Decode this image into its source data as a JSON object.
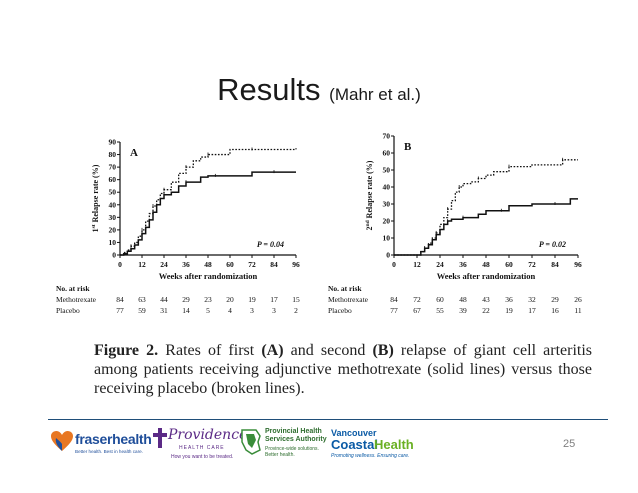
{
  "slide": {
    "title": "Results",
    "title_sub": "(Mahr et al.)",
    "page_number": "25"
  },
  "caption": {
    "figure_label": "Figure 2.",
    "text_1": " Rates of first ",
    "label_a": "(A)",
    "text_2": " and second ",
    "label_b": "(B)",
    "text_3": " relapse of giant cell arteritis among patients receiving adjunctive methotrexate (solid lines) versus those receiving placebo (broken lines)."
  },
  "chart_data": [
    {
      "type": "line",
      "panel": "A",
      "ylabel_prefix": "1",
      "ylabel_sup": "st",
      "ylabel_rest": " Relapse rate (%)",
      "xlabel": "Weeks after randomization",
      "p_value": "P = 0.04",
      "ylim": [
        0,
        90
      ],
      "yticks": [
        0,
        10,
        20,
        30,
        40,
        50,
        60,
        70,
        80,
        90
      ],
      "xlim": [
        0,
        96
      ],
      "xticks": [
        0,
        12,
        24,
        36,
        48,
        60,
        72,
        84,
        96
      ],
      "series": [
        {
          "name": "Methotrexate",
          "style": "solid",
          "x": [
            0,
            2,
            4,
            6,
            8,
            10,
            12,
            14,
            16,
            18,
            20,
            22,
            24,
            28,
            32,
            36,
            44,
            48,
            52,
            60,
            72,
            84,
            96
          ],
          "y": [
            0,
            1,
            3,
            5,
            8,
            12,
            17,
            22,
            28,
            34,
            40,
            45,
            48,
            50,
            55,
            58,
            62,
            63,
            63,
            63,
            66,
            66,
            66
          ]
        },
        {
          "name": "Placebo",
          "style": "dashed",
          "x": [
            0,
            2,
            4,
            6,
            8,
            10,
            12,
            14,
            16,
            18,
            20,
            22,
            24,
            28,
            32,
            36,
            40,
            44,
            48,
            52,
            60,
            72,
            84,
            96
          ],
          "y": [
            0,
            2,
            4,
            7,
            10,
            15,
            20,
            27,
            33,
            39,
            44,
            49,
            52,
            58,
            65,
            70,
            75,
            78,
            80,
            80,
            84,
            84,
            84,
            85
          ]
        }
      ],
      "risk_table": {
        "title": "No. at risk",
        "rows": [
          {
            "label": "Methotrexate",
            "values": [
              "84",
              "63",
              "44",
              "29",
              "23",
              "20",
              "19",
              "17",
              "15"
            ]
          },
          {
            "label": "Placebo",
            "values": [
              "77",
              "59",
              "31",
              "14",
              "5",
              "4",
              "3",
              "3",
              "2"
            ]
          }
        ]
      }
    },
    {
      "type": "line",
      "panel": "B",
      "ylabel_prefix": "2",
      "ylabel_sup": "nd",
      "ylabel_rest": " Relapse rate (%)",
      "xlabel": "Weeks after randomization",
      "p_value": "P = 0.02",
      "ylim": [
        0,
        70
      ],
      "yticks": [
        0,
        10,
        20,
        30,
        40,
        50,
        60,
        70
      ],
      "xlim": [
        0,
        96
      ],
      "xticks": [
        0,
        12,
        24,
        36,
        48,
        60,
        72,
        84,
        96
      ],
      "series": [
        {
          "name": "Methotrexate",
          "style": "solid",
          "x": [
            0,
            12,
            14,
            16,
            18,
            20,
            22,
            24,
            26,
            28,
            30,
            32,
            36,
            44,
            48,
            56,
            60,
            72,
            84,
            92,
            96
          ],
          "y": [
            0,
            0,
            2,
            4,
            6,
            9,
            12,
            15,
            18,
            20,
            21,
            21,
            22,
            24,
            26,
            26,
            29,
            30,
            30,
            33,
            33
          ]
        },
        {
          "name": "Placebo",
          "style": "dashed",
          "x": [
            0,
            12,
            14,
            16,
            18,
            20,
            22,
            24,
            26,
            28,
            30,
            32,
            34,
            36,
            40,
            44,
            48,
            52,
            60,
            72,
            84,
            88,
            96
          ],
          "y": [
            0,
            0,
            2,
            4,
            7,
            10,
            13,
            18,
            22,
            27,
            32,
            37,
            40,
            42,
            43,
            45,
            47,
            49,
            52,
            53,
            53,
            56,
            56
          ]
        }
      ],
      "risk_table": {
        "title": "No. at risk",
        "rows": [
          {
            "label": "Methotrexate",
            "values": [
              "84",
              "72",
              "60",
              "48",
              "43",
              "36",
              "32",
              "29",
              "26"
            ]
          },
          {
            "label": "Placebo",
            "values": [
              "77",
              "67",
              "55",
              "39",
              "22",
              "19",
              "17",
              "16",
              "11"
            ]
          }
        ]
      }
    }
  ],
  "footer": {
    "logos": {
      "fraser": {
        "name": "fraserhealth",
        "tagline": "Better health. Best in health care."
      },
      "providence": {
        "name": "Providence",
        "sub": "HEALTH CARE",
        "tagline": "How you want to be treated."
      },
      "phsa": {
        "line1": "Provincial Health",
        "line2": "Services Authority",
        "tagline1": "Province-wide solutions.",
        "tagline2": "Better health."
      },
      "vch": {
        "line1": "Vancouver",
        "line2a": "Coastal",
        "line2b": "Health",
        "tagline": "Promoting wellness. Ensuring care."
      }
    },
    "colors": {
      "fraser_blue": "#1f4e9a",
      "fraser_orange": "#e87722",
      "providence_purple": "#5b2a86",
      "phsa_green": "#3a8d3a",
      "vch_blue": "#0a5aa5",
      "vch_green": "#6ab023",
      "rule": "#1f4e79"
    }
  }
}
